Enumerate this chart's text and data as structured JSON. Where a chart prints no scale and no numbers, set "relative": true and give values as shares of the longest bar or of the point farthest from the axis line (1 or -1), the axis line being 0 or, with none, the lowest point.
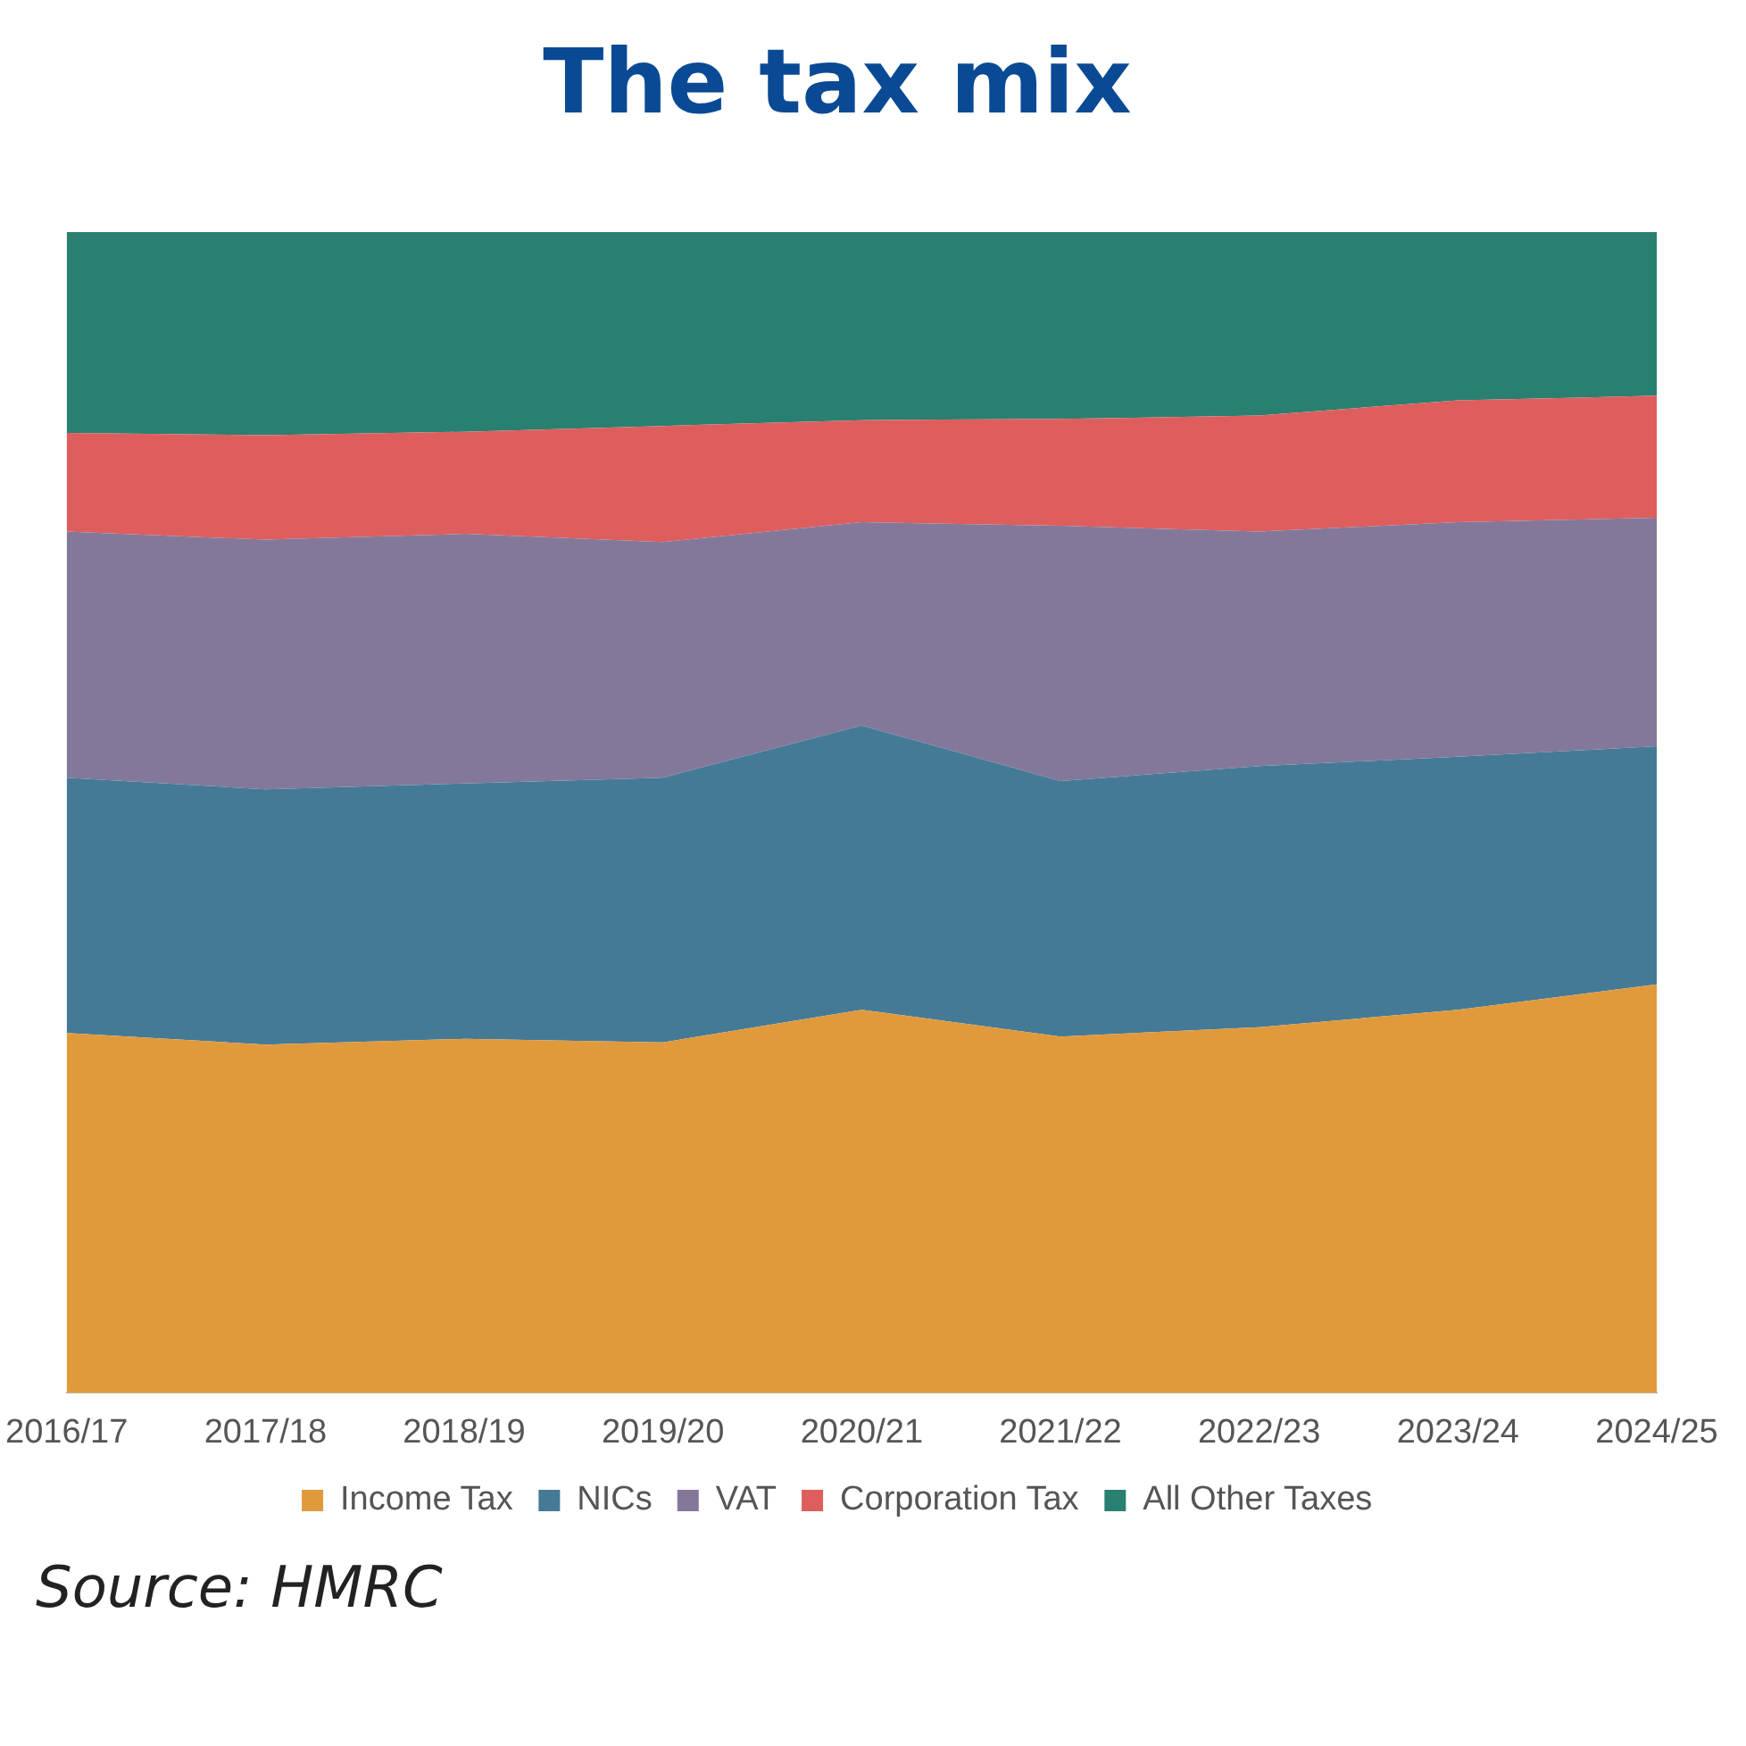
{
  "chart_data": {
    "type": "area",
    "title": "The tax mix",
    "stacked": true,
    "relative": true,
    "legend": "bottom",
    "grid": false,
    "categories": [
      "2016/17",
      "2017/18",
      "2018/19",
      "2019/20",
      "2020/21",
      "2021/22",
      "2022/23",
      "2023/24",
      "2024/25"
    ],
    "series": [
      {
        "name": "Income Tax",
        "color": "#e09a3c",
        "values": [
          0.31,
          0.3,
          0.305,
          0.302,
          0.33,
          0.307,
          0.315,
          0.33,
          0.352
        ]
      },
      {
        "name": "NICs",
        "color": "#457a97",
        "values": [
          0.22,
          0.22,
          0.22,
          0.228,
          0.245,
          0.22,
          0.225,
          0.218,
          0.205
        ]
      },
      {
        "name": "VAT",
        "color": "#84789a",
        "values": [
          0.212,
          0.215,
          0.215,
          0.203,
          0.175,
          0.22,
          0.202,
          0.202,
          0.197
        ]
      },
      {
        "name": "Corporation Tax",
        "color": "#de5e5e",
        "values": [
          0.085,
          0.09,
          0.088,
          0.1,
          0.088,
          0.092,
          0.1,
          0.105,
          0.105
        ]
      },
      {
        "name": "All Other Taxes",
        "color": "#2a8070",
        "values": [
          0.173,
          0.175,
          0.172,
          0.167,
          0.162,
          0.161,
          0.158,
          0.145,
          0.141
        ]
      }
    ],
    "annotations": [
      "Source: HMRC"
    ]
  }
}
